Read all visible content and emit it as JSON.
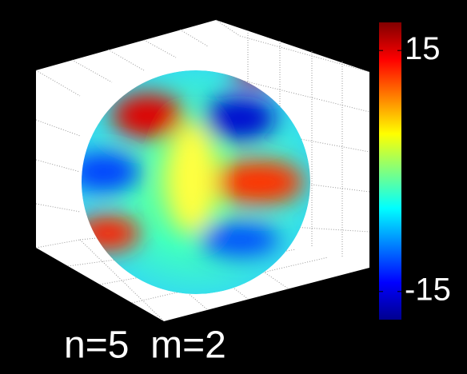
{
  "chart_data": {
    "type": "sphere",
    "title": "n=5  m=2",
    "colormap": "jet",
    "clim": [
      -18.5,
      18.5
    ],
    "cticks": [
      -15,
      15
    ]
  }
}
